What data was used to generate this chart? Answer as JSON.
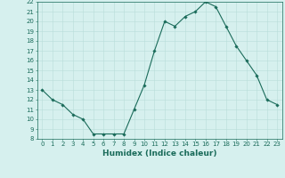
{
  "xlabel": "Humidex (Indice chaleur)",
  "x_values": [
    0,
    1,
    2,
    3,
    4,
    5,
    6,
    7,
    8,
    9,
    10,
    11,
    12,
    13,
    14,
    15,
    16,
    17,
    18,
    19,
    20,
    21,
    22,
    23
  ],
  "y_values": [
    13,
    12,
    11.5,
    10.5,
    10,
    8.5,
    8.5,
    8.5,
    8.5,
    11,
    13.5,
    17,
    20,
    19.5,
    20.5,
    21,
    22,
    21.5,
    19.5,
    17.5,
    16,
    14.5,
    12,
    11.5
  ],
  "ylim": [
    8,
    22
  ],
  "xlim": [
    -0.5,
    23.5
  ],
  "yticks": [
    8,
    9,
    10,
    11,
    12,
    13,
    14,
    15,
    16,
    17,
    18,
    19,
    20,
    21,
    22
  ],
  "xticks": [
    0,
    1,
    2,
    3,
    4,
    5,
    6,
    7,
    8,
    9,
    10,
    11,
    12,
    13,
    14,
    15,
    16,
    17,
    18,
    19,
    20,
    21,
    22,
    23
  ],
  "line_color": "#1a6b5a",
  "marker": "D",
  "marker_size": 1.8,
  "bg_color": "#d6f0ee",
  "grid_color": "#b8ddd9",
  "tick_fontsize": 5.0,
  "xlabel_fontsize": 6.5,
  "tick_color": "#1a6b5a",
  "spine_color": "#1a6b5a"
}
